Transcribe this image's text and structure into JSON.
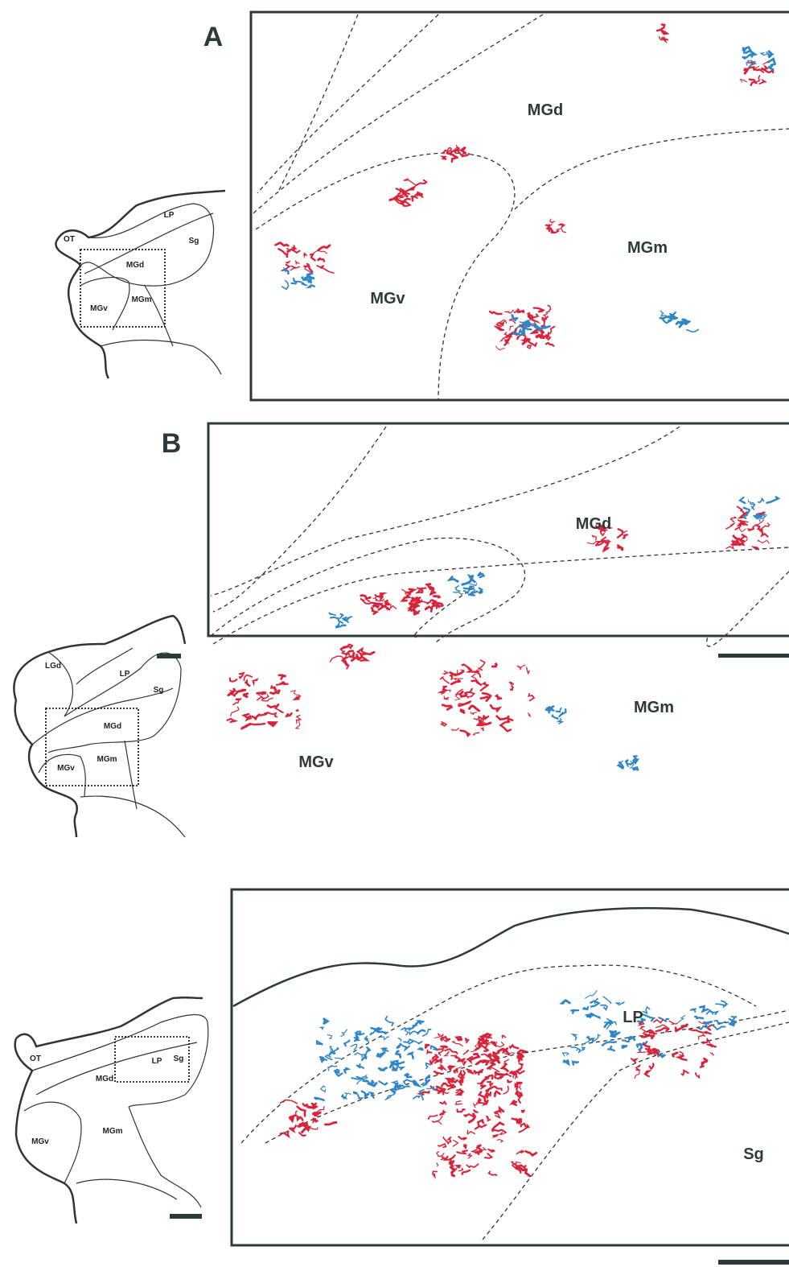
{
  "panels": [
    {
      "letter": "A",
      "inset_labels": [
        "LP",
        "OT",
        "Sg",
        "MGd",
        "MGv",
        "MGm"
      ],
      "main_labels": [
        "MGd",
        "MGm",
        "MGv"
      ]
    },
    {
      "letter": "B",
      "inset_labels": [
        "LGd",
        "LP",
        "Sg",
        "MGd",
        "MGv",
        "MGm"
      ],
      "main_labels": [
        "MGd",
        "MGm",
        "MGv"
      ]
    },
    {
      "inset_labels": [
        "OT",
        "LP",
        "Sg",
        "MGd",
        "MGv",
        "MGm"
      ],
      "main_labels": [
        "LP",
        "Sg"
      ]
    }
  ]
}
